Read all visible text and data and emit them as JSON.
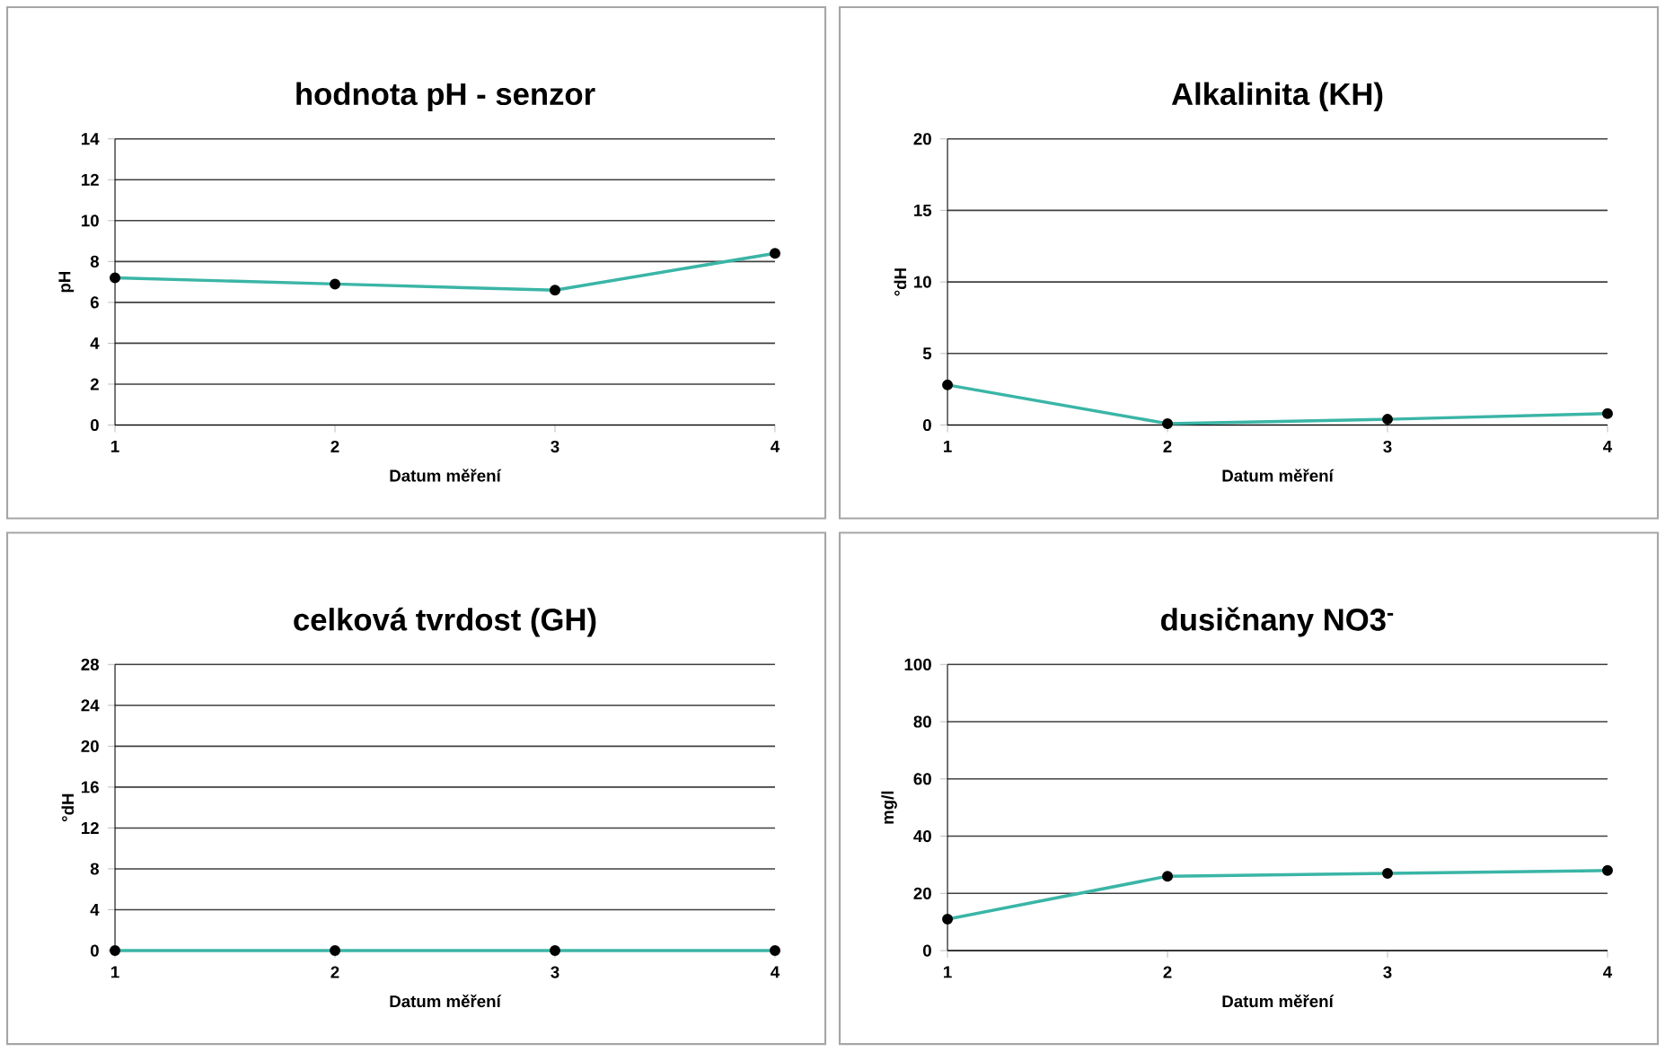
{
  "chart_data": [
    {
      "type": "line",
      "title": "hodnota pH - senzor",
      "xlabel": "Datum měření",
      "ylabel": "pH",
      "x": [
        1,
        2,
        3,
        4
      ],
      "xlim": [
        1,
        4
      ],
      "xticks": [
        1,
        2,
        3,
        4
      ],
      "ylim": [
        0,
        14
      ],
      "yticks": [
        0,
        2,
        4,
        6,
        8,
        10,
        12,
        14
      ],
      "grid": "y",
      "marker": "circle",
      "series": [
        {
          "color": "#3ab5a6",
          "values": [
            7.2,
            6.9,
            6.6,
            8.4
          ]
        }
      ]
    },
    {
      "type": "line",
      "title": "Alkalinita (KH)",
      "xlabel": "Datum měření",
      "ylabel": "°dH",
      "x": [
        1,
        2,
        3,
        4
      ],
      "xlim": [
        1,
        4
      ],
      "xticks": [
        1,
        2,
        3,
        4
      ],
      "ylim": [
        0,
        20
      ],
      "yticks": [
        0,
        5,
        10,
        15,
        20
      ],
      "grid": "y",
      "marker": "circle",
      "series": [
        {
          "color": "#3ab5a6",
          "values": [
            2.8,
            0.1,
            0.4,
            0.8
          ]
        }
      ]
    },
    {
      "type": "line",
      "title": "celková tvrdost (GH)",
      "xlabel": "Datum měření",
      "ylabel": "°dH",
      "x": [
        1,
        2,
        3,
        4
      ],
      "xlim": [
        1,
        4
      ],
      "xticks": [
        1,
        2,
        3,
        4
      ],
      "ylim": [
        0,
        28
      ],
      "yticks": [
        0,
        4,
        8,
        12,
        16,
        20,
        24,
        28
      ],
      "grid": "y",
      "marker": "circle",
      "series": [
        {
          "color": "#3ab5a6",
          "values": [
            0,
            0,
            0,
            0
          ]
        }
      ]
    },
    {
      "type": "line",
      "title": "dusičnany NO3$^{-}$",
      "xlabel": "Datum měření",
      "ylabel": "mg/l",
      "x": [
        1,
        2,
        3,
        4
      ],
      "xlim": [
        1,
        4
      ],
      "xticks": [
        1,
        2,
        3,
        4
      ],
      "ylim": [
        0,
        100
      ],
      "yticks": [
        0,
        20,
        40,
        60,
        80,
        100
      ],
      "grid": "y",
      "marker": "circle",
      "series": [
        {
          "color": "#3ab5a6",
          "values": [
            11,
            26,
            27,
            28
          ]
        }
      ]
    }
  ]
}
